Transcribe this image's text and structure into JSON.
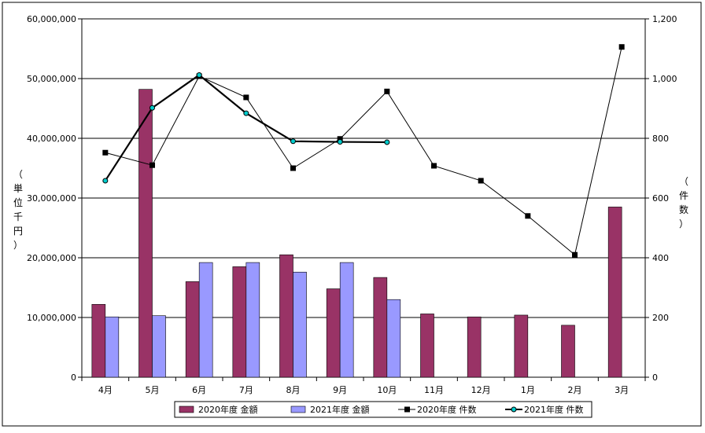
{
  "chart_data": {
    "type": "bar+line",
    "categories": [
      "4月",
      "5月",
      "6月",
      "7月",
      "8月",
      "9月",
      "10月",
      "11月",
      "12月",
      "1月",
      "2月",
      "3月"
    ],
    "left_axis": {
      "label": [
        "単",
        "位",
        "千",
        "円"
      ],
      "ticks": [
        "0",
        "10,000,000",
        "20,000,000",
        "30,000,000",
        "40,000,000",
        "50,000,000",
        "60,000,000"
      ],
      "ylim": [
        0,
        60000000
      ]
    },
    "right_axis": {
      "label": [
        "件",
        "数"
      ],
      "ticks": [
        "0",
        "200",
        "400",
        "600",
        "800",
        "1,000",
        "1,200"
      ],
      "ylim": [
        0,
        1200
      ]
    },
    "bar_series": [
      {
        "name": "2020年度 金額",
        "color": "#993366",
        "values": [
          12200000,
          48200000,
          16000000,
          18500000,
          20500000,
          14800000,
          16700000,
          10600000,
          10100000,
          10400000,
          8700000,
          28500000
        ]
      },
      {
        "name": "2021年度 金額",
        "color": "#9999ff",
        "values": [
          10100000,
          10300000,
          19200000,
          19200000,
          17600000,
          19200000,
          13000000,
          null,
          null,
          null,
          null,
          null
        ]
      }
    ],
    "line_series": [
      {
        "name": "2020年度 件数",
        "color": "#000000",
        "marker": "square",
        "values": [
          752,
          710,
          1008,
          937,
          700,
          798,
          957,
          708,
          658,
          540,
          410,
          1106
        ]
      },
      {
        "name": "2021年度 件数",
        "color": "#000000",
        "marker": "circle",
        "values": [
          658,
          902,
          1012,
          884,
          790,
          788,
          787,
          null,
          null,
          null,
          null,
          null
        ]
      }
    ],
    "grid": true,
    "legend": "bottom"
  },
  "legend_items": [
    "2020年度 金額",
    "2021年度 金額",
    "2020年度 件数",
    "2021年度 件数"
  ],
  "paren_open": "（",
  "paren_close": "）"
}
